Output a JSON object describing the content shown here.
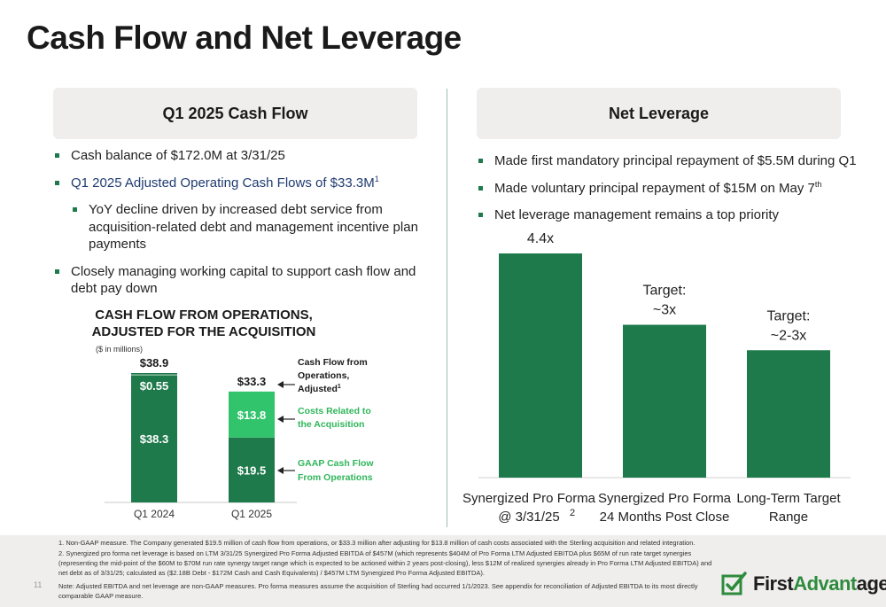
{
  "title": "Cash Flow and Net Leverage",
  "left_panel": {
    "heading": "Q1 2025 Cash Flow",
    "bullets": [
      "Cash balance of $172.0M at 3/31/25",
      "Q1 2025 Adjusted Operating Cash Flows of $33.3M",
      "YoY decline driven by increased debt service from acquisition-related debt and management incentive plan payments",
      "Closely managing working capital to support cash flow and debt pay down"
    ],
    "bullet2_sup": "1"
  },
  "right_panel": {
    "heading": "Net Leverage",
    "bullets": [
      "Made first mandatory principal repayment of $5.5M during Q1",
      "Made voluntary principal repayment of $15M on May 7",
      "Net leverage management remains a top priority"
    ],
    "bullet2_sup": "th"
  },
  "cash_flow_chart": {
    "title_line1": "CASH FLOW FROM OPERATIONS,",
    "title_line2": "ADJUSTED FOR THE ACQUISITION",
    "units": "($ in millions)",
    "annotations": {
      "cfo_adjusted": "Cash Flow from Operations, Adjusted",
      "cfo_adjusted_sup": "1",
      "acq_costs": "Costs Related to the Acquisition",
      "gaap": "GAAP Cash Flow From Operations"
    },
    "colors": {
      "dark": "#1e7a4b",
      "light": "#32c46c",
      "annot": "#2fb65a"
    }
  },
  "leverage_chart": {
    "colors": {
      "bar": "#1e7a4b"
    }
  },
  "chart_data": [
    {
      "type": "bar",
      "stacked": true,
      "categories": [
        "Q1 2024",
        "Q1 2025"
      ],
      "series": [
        {
          "values": [
            38.3,
            19.5
          ]
        },
        {
          "values": [
            0.55,
            13.8
          ]
        }
      ],
      "totals": [
        38.9,
        33.3
      ],
      "value_labels": {
        "bottom": [
          "$38.3",
          "$19.5"
        ],
        "top": [
          "$0.55",
          "$13.8"
        ],
        "totals": [
          "$38.9",
          "$33.3"
        ]
      }
    },
    {
      "type": "bar",
      "categories": [
        [
          "Synergized Pro Forma",
          "@ 3/31/25"
        ],
        [
          "Synergized Pro Forma",
          "24 Months Post Close"
        ],
        [
          "Long-Term Target",
          "Range"
        ]
      ],
      "category_sup": [
        "2",
        "",
        ""
      ],
      "values": [
        4.4,
        3,
        2.5
      ],
      "labels": [
        [
          "4.4x"
        ],
        [
          "Target:",
          "~3x"
        ],
        [
          "Target:",
          "~2-3x"
        ]
      ]
    }
  ],
  "footnotes": {
    "note1": "1.  Non-GAAP measure. The Company generated $19.5 million of cash flow from operations, or $33.3  million after adjusting for $13.8 million of cash costs associated with the Sterling acquisition and related integration.",
    "note2": "2.  Synergized pro forma net leverage is based on LTM 3/31/25 Synergized Pro Forma Adjusted EBITDA of $457M (which represents $404M of Pro Forma LTM Adjusted EBITDA plus $65M of run rate target synergies (representing the mid-point of the $60M to $70M run rate synergy target range which is expected to be actioned within 2 years post-closing), less $12M of realized synergies already in Pro Forma LTM Adjusted EBITDA) and net debt as of 3/31/25; calculated as ($2.18B Debt - $172M Cash and Cash Equivalents) / $457M LTM Synergized Pro Forma Adjusted EBITDA).",
    "note3": "Note: Adjusted EBITDA and net leverage are non-GAAP measures. Pro forma measures assume the acquisition of Sterling had occurred 1/1/2023. See appendix for reconciliation of Adjusted EBITDA to its most directly comparable GAAP measure."
  },
  "page_number": "11",
  "logo": {
    "text_first": "First",
    "text_green": "Advant",
    "text_last": "age",
    "icon": "checkbox-logo-icon"
  }
}
